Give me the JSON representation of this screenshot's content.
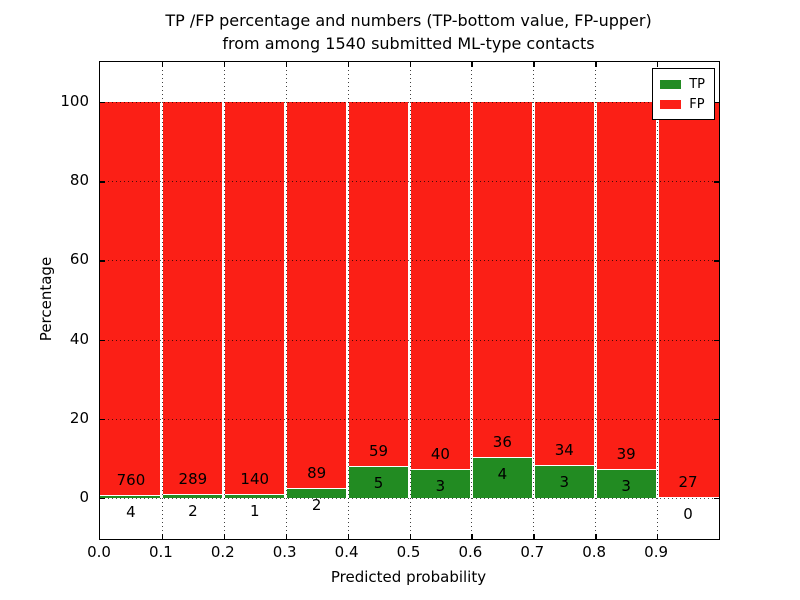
{
  "title": {
    "line1": "TP /FP percentage and numbers (TP-bottom value, FP-upper)",
    "line2": "from among 1540 submitted ML-type contacts"
  },
  "axes": {
    "xlabel": "Predicted probability",
    "ylabel": "Percentage",
    "x_tick_labels": [
      "0.0",
      "0.1",
      "0.2",
      "0.3",
      "0.4",
      "0.5",
      "0.6",
      "0.7",
      "0.8",
      "0.9"
    ],
    "y_tick_labels": [
      "0",
      "20",
      "40",
      "60",
      "80",
      "100"
    ],
    "y_tick_values": [
      0,
      20,
      40,
      60,
      80,
      100
    ],
    "xlim": [
      0.0,
      1.0
    ],
    "ylim_percent": [
      -10.4,
      110.4
    ],
    "grid_style": "dotted"
  },
  "legend": {
    "position": "upper right",
    "items": [
      {
        "label": "TP",
        "color": "#228B22"
      },
      {
        "label": "FP",
        "color": "#FB1F16"
      }
    ]
  },
  "colors": {
    "tp": "#228B22",
    "fp": "#FB1F16",
    "background": "#FFFFFF",
    "text": "#000000",
    "grid": "#000000"
  },
  "chart_data": {
    "type": "bar",
    "stacked": true,
    "normalized": "each 0.1-wide bin totals 100%",
    "total_contacts": 1540,
    "bin_width": 0.1,
    "bins": [
      {
        "range": "0.0-0.1",
        "x_start": 0.0,
        "tp_count": 4,
        "fp_count": 760,
        "tp_percent": 0.52
      },
      {
        "range": "0.1-0.2",
        "x_start": 0.1,
        "tp_count": 2,
        "fp_count": 289,
        "tp_percent": 0.69
      },
      {
        "range": "0.2-0.3",
        "x_start": 0.2,
        "tp_count": 1,
        "fp_count": 140,
        "tp_percent": 0.71
      },
      {
        "range": "0.3-0.4",
        "x_start": 0.3,
        "tp_count": 2,
        "fp_count": 89,
        "tp_percent": 2.2
      },
      {
        "range": "0.4-0.5",
        "x_start": 0.4,
        "tp_count": 5,
        "fp_count": 59,
        "tp_percent": 7.81
      },
      {
        "range": "0.5-0.6",
        "x_start": 0.5,
        "tp_count": 3,
        "fp_count": 40,
        "tp_percent": 6.98
      },
      {
        "range": "0.6-0.7",
        "x_start": 0.6,
        "tp_count": 4,
        "fp_count": 36,
        "tp_percent": 10.0
      },
      {
        "range": "0.7-0.8",
        "x_start": 0.7,
        "tp_count": 3,
        "fp_count": 34,
        "tp_percent": 8.11
      },
      {
        "range": "0.8-0.9",
        "x_start": 0.8,
        "tp_count": 3,
        "fp_count": 39,
        "tp_percent": 7.14
      },
      {
        "range": "0.9-1.0",
        "x_start": 0.9,
        "tp_count": 0,
        "fp_count": 27,
        "tp_percent": 0.0
      }
    ],
    "series": [
      {
        "name": "TP",
        "counts": [
          4,
          2,
          1,
          2,
          5,
          3,
          4,
          3,
          3,
          0
        ]
      },
      {
        "name": "FP",
        "counts": [
          760,
          289,
          140,
          89,
          59,
          40,
          36,
          34,
          39,
          27
        ]
      }
    ]
  }
}
